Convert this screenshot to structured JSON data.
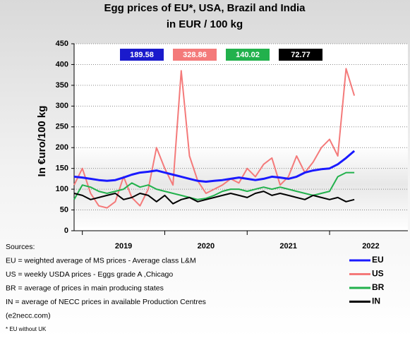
{
  "chart_data": {
    "type": "line",
    "title": "Egg prices of EU*, USA, Brazil and India",
    "subtitle": "in EUR / 100 kg",
    "y_label": "In €uro/100 kg",
    "x": [
      2018.9,
      2019.0,
      2019.1,
      2019.2,
      2019.3,
      2019.4,
      2019.5,
      2019.6,
      2019.7,
      2019.8,
      2019.9,
      2020.0,
      2020.1,
      2020.2,
      2020.3,
      2020.4,
      2020.5,
      2020.6,
      2020.7,
      2020.8,
      2020.9,
      2021.0,
      2021.1,
      2021.2,
      2021.3,
      2021.4,
      2021.5,
      2021.6,
      2021.7,
      2021.8,
      2021.9,
      2022.0,
      2022.1,
      2022.2,
      2022.3
    ],
    "series": [
      {
        "name": "EU",
        "color": "#1a1aff",
        "values": [
          130,
          128,
          125,
          122,
          120,
          122,
          128,
          135,
          140,
          142,
          145,
          140,
          135,
          130,
          125,
          120,
          118,
          120,
          122,
          125,
          128,
          125,
          122,
          125,
          130,
          128,
          125,
          130,
          140,
          145,
          148,
          150,
          160,
          175,
          192
        ]
      },
      {
        "name": "US",
        "color": "#f47a7a",
        "values": [
          110,
          150,
          90,
          60,
          55,
          70,
          130,
          80,
          60,
          100,
          200,
          150,
          110,
          385,
          180,
          120,
          90,
          100,
          110,
          125,
          115,
          150,
          130,
          160,
          175,
          110,
          130,
          180,
          140,
          165,
          200,
          220,
          180,
          390,
          325
        ]
      },
      {
        "name": "BR",
        "color": "#22b14c",
        "values": [
          75,
          110,
          105,
          95,
          90,
          95,
          100,
          115,
          105,
          110,
          100,
          95,
          90,
          85,
          80,
          75,
          78,
          85,
          95,
          100,
          100,
          95,
          100,
          105,
          100,
          105,
          100,
          95,
          90,
          85,
          90,
          95,
          130,
          140,
          140
        ]
      },
      {
        "name": "IN",
        "color": "#000000",
        "values": [
          90,
          85,
          75,
          80,
          85,
          90,
          75,
          80,
          90,
          85,
          70,
          85,
          65,
          75,
          80,
          70,
          75,
          80,
          85,
          90,
          85,
          80,
          90,
          95,
          85,
          90,
          85,
          80,
          75,
          85,
          80,
          75,
          80,
          70,
          75
        ]
      }
    ],
    "annotations": [
      {
        "text": "189.58",
        "color": "#1a1acc"
      },
      {
        "text": "328.86",
        "color": "#f47a7a"
      },
      {
        "text": "140.02",
        "color": "#22b14c"
      },
      {
        "text": "72.77",
        "color": "#000000"
      }
    ],
    "xlim": [
      2018.9,
      2022.95
    ],
    "xticks": [
      {
        "value": 2019,
        "label": "2019"
      },
      {
        "value": 2020,
        "label": "2020"
      },
      {
        "value": 2021,
        "label": "2021"
      },
      {
        "value": 2022,
        "label": "2022"
      }
    ],
    "ylim": [
      0,
      450
    ],
    "yticks": [
      0,
      50,
      100,
      150,
      200,
      250,
      300,
      350,
      400,
      450
    ],
    "grid": true,
    "sources": [
      "Sources:",
      "EU = weighted average of MS prices - Average class L&M",
      "US = weekly USDA prices - Eggs grade A ,Chicago",
      "BR = average of prices in main producing states",
      "IN = average of NECC prices in available Production Centres",
      "(e2necc.com)",
      "* EU without UK"
    ]
  }
}
